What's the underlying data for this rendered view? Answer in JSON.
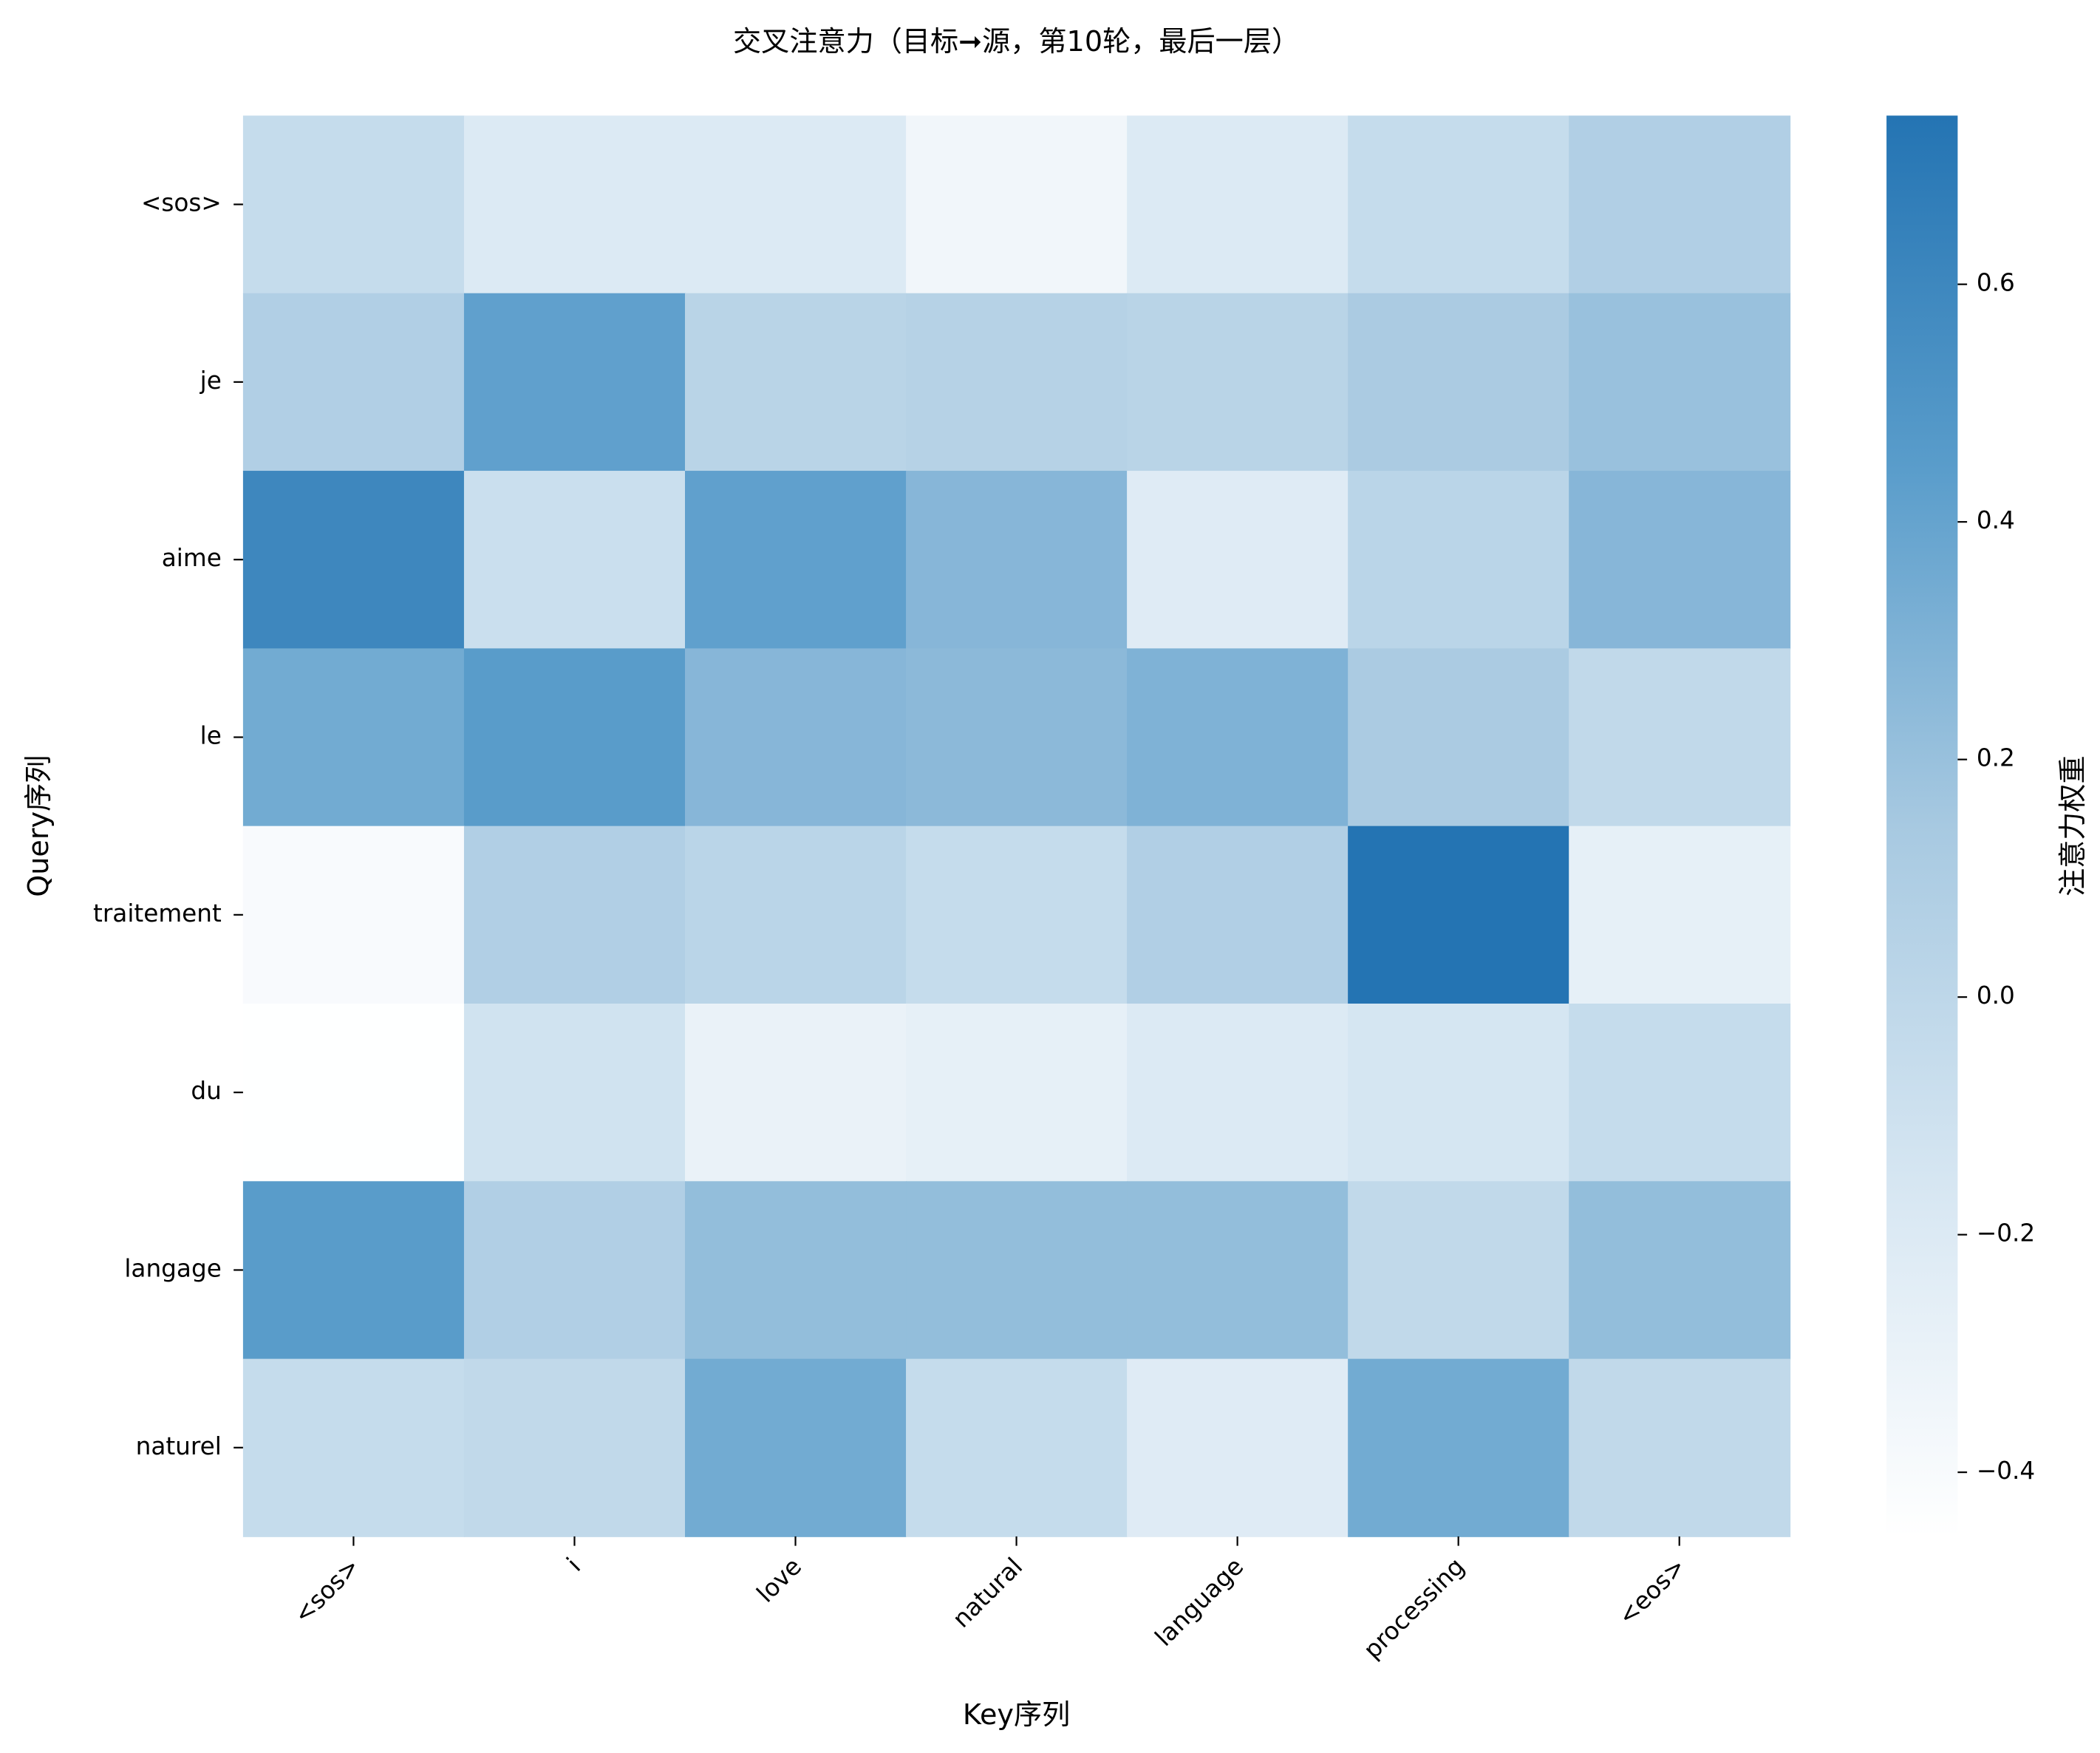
{
  "chart_data": {
    "type": "heatmap",
    "title": "交叉注意力（目标➞源，第10轮，最后一层）",
    "x_label": "Key序列",
    "y_label": "Query序列",
    "colorbar_label": "注意力权重",
    "categories": [
      "<sos>",
      "i",
      "love",
      "natural",
      "language",
      "processing",
      "<eos>"
    ],
    "y_categories": [
      "<sos>",
      "je",
      "aime",
      "le",
      "traitement",
      "du",
      "langage",
      "naturel"
    ],
    "values": [
      [
        -0.05,
        -0.2,
        -0.2,
        -0.35,
        -0.2,
        -0.05,
        0.08
      ],
      [
        0.08,
        0.42,
        0.03,
        0.05,
        0.03,
        0.12,
        0.2
      ],
      [
        0.6,
        -0.08,
        0.42,
        0.27,
        -0.22,
        0.02,
        0.27
      ],
      [
        0.35,
        0.45,
        0.27,
        0.25,
        0.3,
        0.12,
        -0.02
      ],
      [
        -0.4,
        0.08,
        0.02,
        -0.05,
        0.08,
        0.74,
        -0.27
      ],
      [
        -0.45,
        -0.12,
        -0.3,
        -0.27,
        -0.2,
        -0.15,
        -0.05
      ],
      [
        0.45,
        0.08,
        0.22,
        0.22,
        0.22,
        -0.02,
        0.22
      ],
      [
        -0.05,
        -0.02,
        0.35,
        -0.05,
        -0.22,
        0.35,
        -0.02
      ]
    ],
    "colorscale": [
      "#ffffff",
      "#d6e6f2",
      "#a7c9e1",
      "#5a9dcb",
      "#2474b3"
    ],
    "clim": [
      -0.454,
      0.742
    ],
    "cticks": [
      {
        "value": -0.4,
        "label": "−0.4"
      },
      {
        "value": -0.2,
        "label": "−0.2"
      },
      {
        "value": 0,
        "label": "0.0"
      },
      0.2,
      0.4,
      0.6
    ]
  }
}
